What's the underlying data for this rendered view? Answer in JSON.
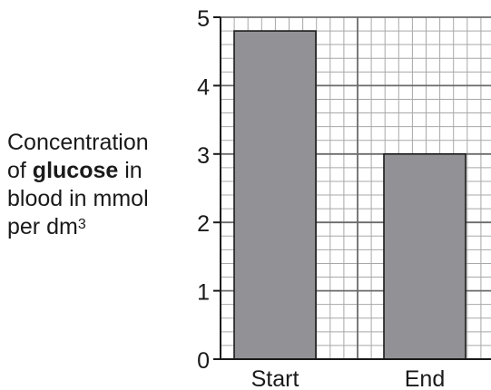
{
  "chart_data": {
    "type": "bar",
    "categories": [
      "Start",
      "End"
    ],
    "values": [
      4.8,
      3.0
    ],
    "ylim": [
      0,
      5
    ],
    "yticks": [
      0,
      1,
      2,
      3,
      4,
      5
    ],
    "grid": true,
    "ylabel": {
      "line1": "Concentration",
      "line2_pre": "of ",
      "line2_bold": "glucose",
      "line2_post": " in",
      "line3": "blood in mmol",
      "line4_pre": "per dm",
      "line4_sup": "3"
    },
    "colors": {
      "bar": "#929296",
      "grid_minor": "#a8a8a8",
      "grid_major": "#6b6b6b",
      "axis": "#1a1a1a"
    }
  }
}
